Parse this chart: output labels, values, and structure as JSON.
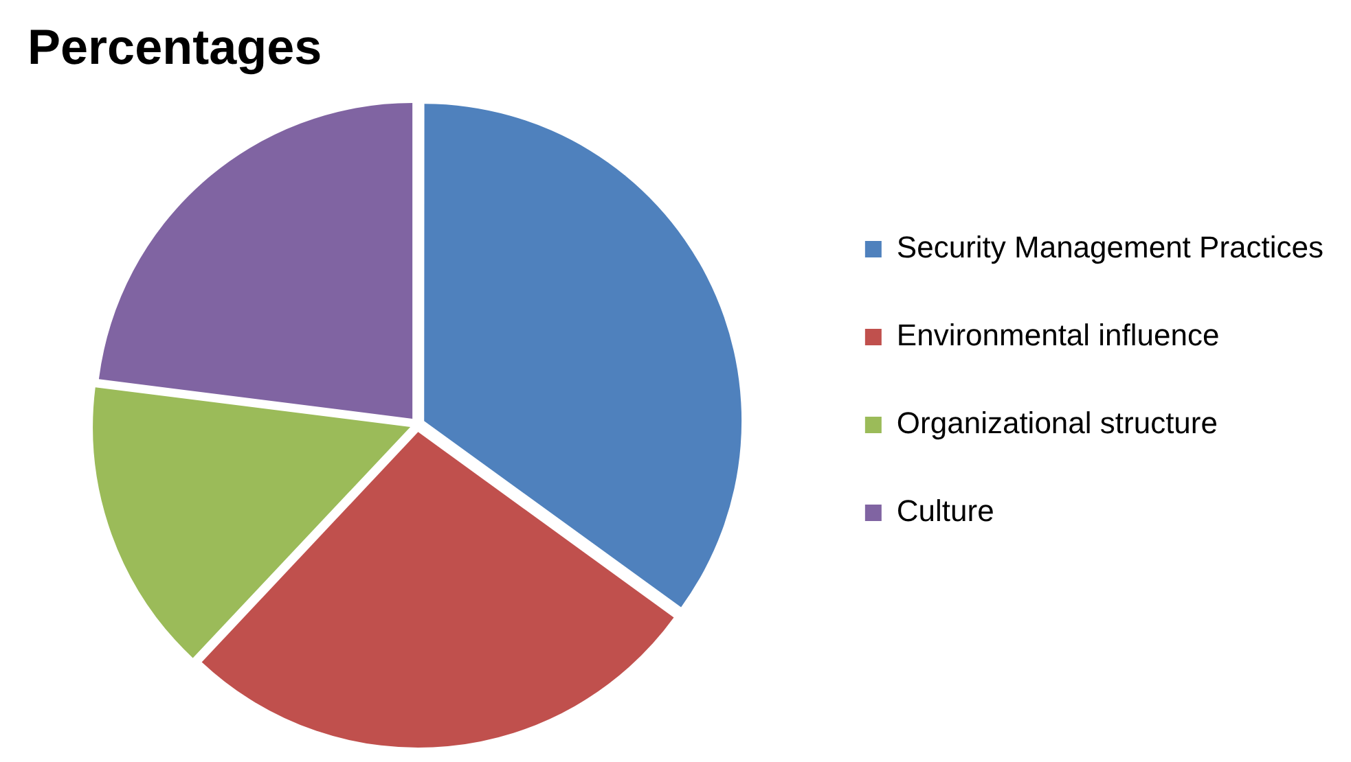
{
  "chart_data": {
    "type": "pie",
    "title": "Percentages",
    "categories": [
      "Security Management Practices",
      "Environmental influence",
      "Organizational structure",
      "Culture"
    ],
    "values": [
      35,
      27,
      15,
      23
    ],
    "colors": [
      "#4f81bd",
      "#c0504d",
      "#9bbb59",
      "#8064a2"
    ],
    "legend": "right"
  }
}
